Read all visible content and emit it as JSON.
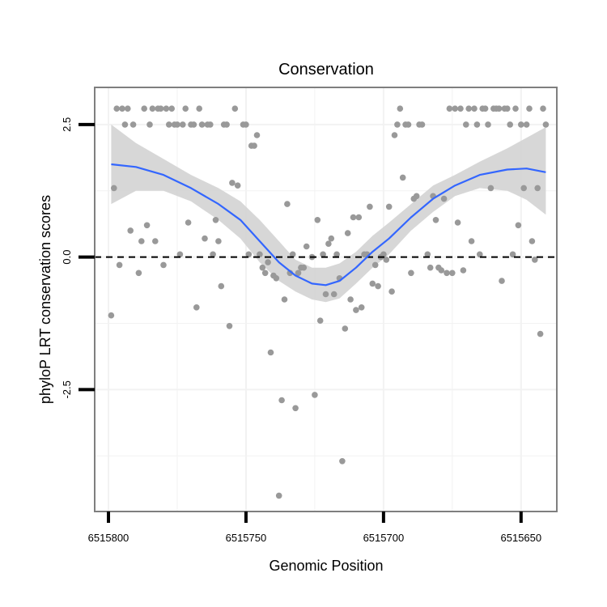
{
  "chart_data": {
    "type": "scatter",
    "title": "Conservation",
    "xlabel": "Genomic Position",
    "ylabel": "phyloP LRT conservation scores",
    "x_reversed": true,
    "xlim": [
      6515805,
      6515637
    ],
    "ylim": [
      -4.8,
      3.2
    ],
    "x_ticks": [
      6515800,
      6515750,
      6515700,
      6515650
    ],
    "x_tick_labels": [
      "6515800",
      "6515750",
      "6515700",
      "6515650"
    ],
    "y_ticks": [
      2.5,
      0.0,
      -2.5
    ],
    "y_tick_labels": [
      "2.5",
      "0.0",
      "-2.5"
    ],
    "y_minor_gridlines": [
      1.25,
      -1.25,
      -3.75
    ],
    "x_minor_gridlines": [
      6515775,
      6515725,
      6515675
    ],
    "reference_line": {
      "y": 0,
      "style": "dashed"
    },
    "colors": {
      "points": "#999999",
      "smooth": "#3366FF",
      "ribbon": "#D3D3D3",
      "grid": "#F2F2F2",
      "frame": "#7F7F7F"
    },
    "series": [
      {
        "name": "scores",
        "points": [
          [
            6515799,
            -1.1
          ],
          [
            6515798,
            1.3
          ],
          [
            6515797,
            2.8
          ],
          [
            6515796,
            -0.15
          ],
          [
            6515795,
            2.8
          ],
          [
            6515794,
            2.5
          ],
          [
            6515793,
            2.8
          ],
          [
            6515792,
            0.5
          ],
          [
            6515791,
            2.5
          ],
          [
            6515789,
            -0.3
          ],
          [
            6515788,
            0.3
          ],
          [
            6515787,
            2.8
          ],
          [
            6515786,
            0.6
          ],
          [
            6515785,
            2.5
          ],
          [
            6515784,
            2.8
          ],
          [
            6515783,
            0.3
          ],
          [
            6515782,
            2.8
          ],
          [
            6515781,
            2.8
          ],
          [
            6515780,
            -0.15
          ],
          [
            6515779,
            2.8
          ],
          [
            6515778,
            2.5
          ],
          [
            6515777,
            2.8
          ],
          [
            6515776,
            2.5
          ],
          [
            6515775,
            2.5
          ],
          [
            6515774,
            0.05
          ],
          [
            6515773,
            2.5
          ],
          [
            6515772,
            2.8
          ],
          [
            6515771,
            0.65
          ],
          [
            6515770,
            2.5
          ],
          [
            6515769,
            2.5
          ],
          [
            6515768,
            -0.95
          ],
          [
            6515767,
            2.8
          ],
          [
            6515766,
            2.5
          ],
          [
            6515765,
            0.35
          ],
          [
            6515764,
            2.5
          ],
          [
            6515763,
            2.5
          ],
          [
            6515762,
            0.05
          ],
          [
            6515761,
            0.7
          ],
          [
            6515760,
            0.3
          ],
          [
            6515759,
            -0.55
          ],
          [
            6515758,
            2.5
          ],
          [
            6515757,
            2.5
          ],
          [
            6515756,
            -1.3
          ],
          [
            6515755,
            1.4
          ],
          [
            6515754,
            2.8
          ],
          [
            6515753,
            1.35
          ],
          [
            6515751,
            2.5
          ],
          [
            6515750,
            2.5
          ],
          [
            6515749,
            0.05
          ],
          [
            6515748,
            2.1
          ],
          [
            6515747,
            2.1
          ],
          [
            6515746,
            2.3
          ],
          [
            6515745,
            0.05
          ],
          [
            6515744,
            -0.2
          ],
          [
            6515743,
            -0.3
          ],
          [
            6515742,
            -0.1
          ],
          [
            6515741,
            -1.8
          ],
          [
            6515740,
            -0.35
          ],
          [
            6515739,
            -0.4
          ],
          [
            6515738,
            -4.5
          ],
          [
            6515737,
            -2.7
          ],
          [
            6515736,
            -0.8
          ],
          [
            6515735,
            1.0
          ],
          [
            6515734,
            -0.3
          ],
          [
            6515733,
            0.05
          ],
          [
            6515732,
            -2.85
          ],
          [
            6515731,
            -0.3
          ],
          [
            6515730,
            -0.2
          ],
          [
            6515729,
            -0.2
          ],
          [
            6515728,
            0.2
          ],
          [
            6515726,
            0.0
          ],
          [
            6515725,
            -2.6
          ],
          [
            6515724,
            0.7
          ],
          [
            6515723,
            -1.2
          ],
          [
            6515722,
            0.05
          ],
          [
            6515721,
            -0.7
          ],
          [
            6515720,
            0.25
          ],
          [
            6515719,
            0.35
          ],
          [
            6515718,
            -0.7
          ],
          [
            6515717,
            0.05
          ],
          [
            6515716,
            -0.4
          ],
          [
            6515715,
            -3.85
          ],
          [
            6515714,
            -1.35
          ],
          [
            6515713,
            0.45
          ],
          [
            6515712,
            -0.8
          ],
          [
            6515711,
            0.75
          ],
          [
            6515710,
            -1.0
          ],
          [
            6515709,
            0.75
          ],
          [
            6515708,
            -0.95
          ],
          [
            6515707,
            0.05
          ],
          [
            6515706,
            0.05
          ],
          [
            6515705,
            0.95
          ],
          [
            6515704,
            -0.5
          ],
          [
            6515703,
            -0.15
          ],
          [
            6515702,
            -0.55
          ],
          [
            6515701,
            0.0
          ],
          [
            6515700,
            0.05
          ],
          [
            6515699,
            -0.05
          ],
          [
            6515698,
            0.95
          ],
          [
            6515697,
            -0.65
          ],
          [
            6515696,
            2.3
          ],
          [
            6515695,
            2.5
          ],
          [
            6515694,
            2.8
          ],
          [
            6515693,
            1.5
          ],
          [
            6515692,
            2.5
          ],
          [
            6515691,
            2.5
          ],
          [
            6515690,
            -0.3
          ],
          [
            6515689,
            1.1
          ],
          [
            6515688,
            1.15
          ],
          [
            6515687,
            2.5
          ],
          [
            6515686,
            2.5
          ],
          [
            6515684,
            0.05
          ],
          [
            6515683,
            -0.2
          ],
          [
            6515682,
            1.15
          ],
          [
            6515681,
            0.7
          ],
          [
            6515680,
            -0.2
          ],
          [
            6515679,
            -0.25
          ],
          [
            6515678,
            1.1
          ],
          [
            6515677,
            -0.3
          ],
          [
            6515676,
            2.8
          ],
          [
            6515675,
            -0.3
          ],
          [
            6515674,
            2.8
          ],
          [
            6515673,
            0.65
          ],
          [
            6515672,
            2.8
          ],
          [
            6515671,
            -0.25
          ],
          [
            6515670,
            2.5
          ],
          [
            6515669,
            2.8
          ],
          [
            6515668,
            0.3
          ],
          [
            6515667,
            2.8
          ],
          [
            6515666,
            2.5
          ],
          [
            6515665,
            0.05
          ],
          [
            6515664,
            2.8
          ],
          [
            6515663,
            2.8
          ],
          [
            6515662,
            2.5
          ],
          [
            6515661,
            1.3
          ],
          [
            6515660,
            2.8
          ],
          [
            6515659,
            2.8
          ],
          [
            6515658,
            2.8
          ],
          [
            6515657,
            -0.45
          ],
          [
            6515656,
            2.8
          ],
          [
            6515655,
            2.8
          ],
          [
            6515654,
            2.5
          ],
          [
            6515653,
            0.05
          ],
          [
            6515652,
            2.8
          ],
          [
            6515651,
            0.6
          ],
          [
            6515650,
            2.5
          ],
          [
            6515649,
            1.3
          ],
          [
            6515648,
            2.5
          ],
          [
            6515647,
            2.8
          ],
          [
            6515646,
            0.3
          ],
          [
            6515645,
            -0.05
          ],
          [
            6515644,
            1.3
          ],
          [
            6515643,
            -1.45
          ],
          [
            6515642,
            2.8
          ],
          [
            6515641,
            2.5
          ]
        ]
      }
    ],
    "smooth_curve": [
      [
        6515799,
        1.75
      ],
      [
        6515790,
        1.7
      ],
      [
        6515780,
        1.55
      ],
      [
        6515770,
        1.3
      ],
      [
        6515760,
        1.0
      ],
      [
        6515752,
        0.7
      ],
      [
        6515745,
        0.3
      ],
      [
        6515738,
        -0.1
      ],
      [
        6515732,
        -0.35
      ],
      [
        6515726,
        -0.5
      ],
      [
        6515721,
        -0.53
      ],
      [
        6515716,
        -0.45
      ],
      [
        6515710,
        -0.2
      ],
      [
        6515704,
        0.1
      ],
      [
        6515698,
        0.35
      ],
      [
        6515690,
        0.75
      ],
      [
        6515682,
        1.1
      ],
      [
        6515674,
        1.35
      ],
      [
        6515665,
        1.55
      ],
      [
        6515655,
        1.65
      ],
      [
        6515648,
        1.67
      ],
      [
        6515641,
        1.6
      ]
    ],
    "ribbon_upper": [
      [
        6515799,
        2.5
      ],
      [
        6515790,
        2.15
      ],
      [
        6515780,
        1.85
      ],
      [
        6515770,
        1.55
      ],
      [
        6515760,
        1.3
      ],
      [
        6515752,
        1.05
      ],
      [
        6515745,
        0.7
      ],
      [
        6515738,
        0.3
      ],
      [
        6515732,
        -0.05
      ],
      [
        6515726,
        -0.2
      ],
      [
        6515721,
        -0.2
      ],
      [
        6515716,
        -0.12
      ],
      [
        6515710,
        0.1
      ],
      [
        6515704,
        0.4
      ],
      [
        6515698,
        0.65
      ],
      [
        6515690,
        1.0
      ],
      [
        6515682,
        1.35
      ],
      [
        6515674,
        1.55
      ],
      [
        6515665,
        1.8
      ],
      [
        6515655,
        2.05
      ],
      [
        6515648,
        2.25
      ],
      [
        6515641,
        2.45
      ]
    ],
    "ribbon_lower": [
      [
        6515799,
        1.0
      ],
      [
        6515790,
        1.25
      ],
      [
        6515780,
        1.25
      ],
      [
        6515770,
        1.05
      ],
      [
        6515760,
        0.7
      ],
      [
        6515752,
        0.35
      ],
      [
        6515745,
        -0.1
      ],
      [
        6515738,
        -0.45
      ],
      [
        6515732,
        -0.65
      ],
      [
        6515726,
        -0.8
      ],
      [
        6515721,
        -0.85
      ],
      [
        6515716,
        -0.78
      ],
      [
        6515710,
        -0.5
      ],
      [
        6515704,
        -0.2
      ],
      [
        6515698,
        0.05
      ],
      [
        6515690,
        0.5
      ],
      [
        6515682,
        0.85
      ],
      [
        6515674,
        1.15
      ],
      [
        6515665,
        1.3
      ],
      [
        6515655,
        1.25
      ],
      [
        6515648,
        1.08
      ],
      [
        6515641,
        0.8
      ]
    ]
  }
}
